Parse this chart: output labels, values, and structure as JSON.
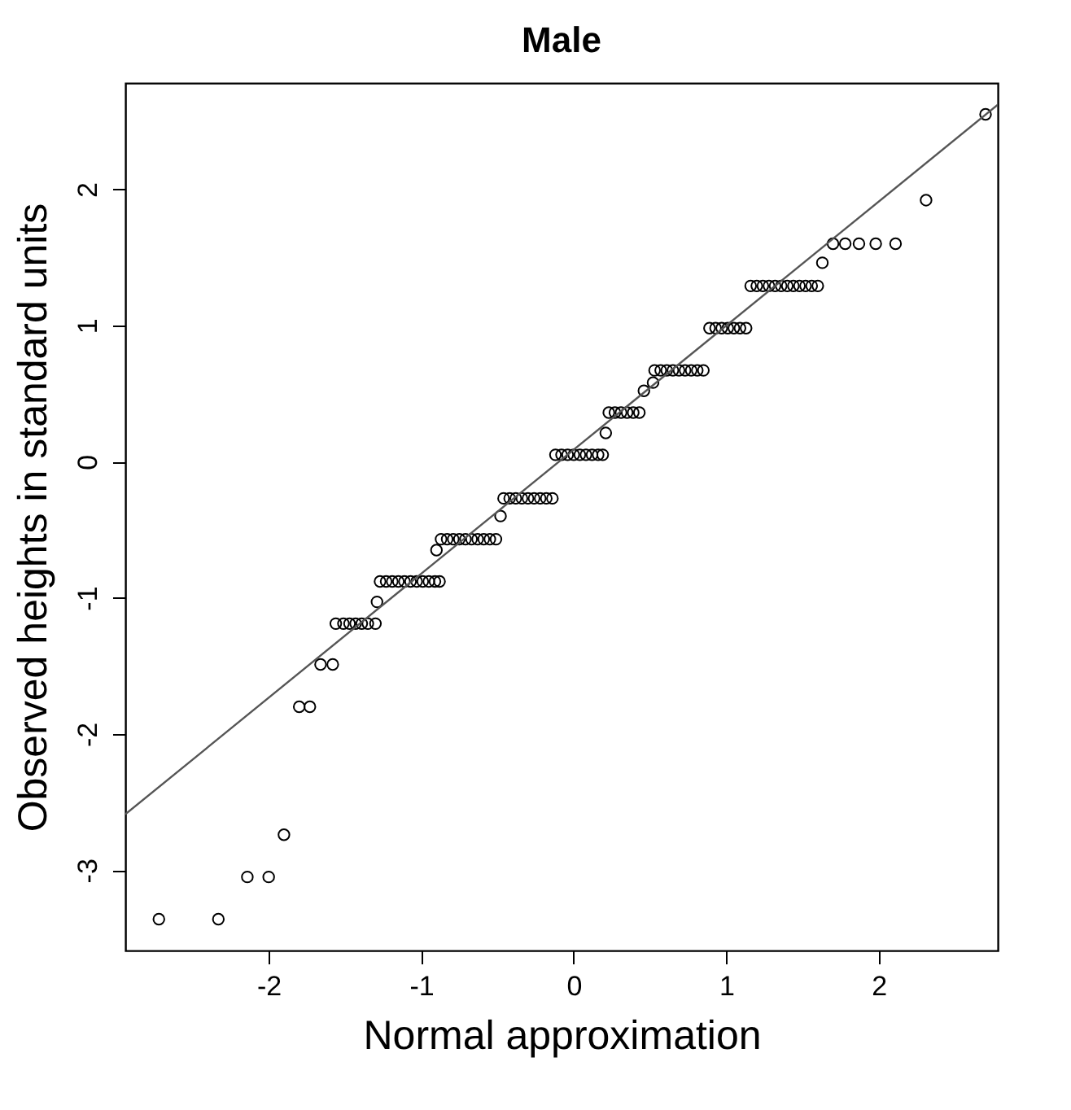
{
  "chart_data": {
    "type": "scatter",
    "title": "Male",
    "xlabel": "Normal approximation",
    "ylabel": "Observed heights in standard units",
    "xlim": [
      -2.94,
      2.78
    ],
    "ylim": [
      -3.59,
      2.78
    ],
    "xticks": [
      -2,
      -1,
      0,
      1,
      2
    ],
    "yticks": [
      -3,
      -2,
      -1,
      0,
      1,
      2
    ],
    "grid": false,
    "series": [
      {
        "color": "#000000",
        "marker": "circle",
        "x": [
          -2.72,
          -2.33,
          -2.14,
          -2.0,
          -1.9,
          -1.8,
          -1.73,
          -1.66,
          -1.58,
          -1.56,
          -1.51,
          -1.47,
          -1.43,
          -1.39,
          -1.35,
          -1.3,
          -1.29,
          -1.27,
          -1.23,
          -1.19,
          -1.15,
          -1.11,
          -1.07,
          -1.03,
          -0.99,
          -0.95,
          -0.91,
          -0.88,
          -0.9,
          -0.87,
          -0.83,
          -0.79,
          -0.75,
          -0.71,
          -0.67,
          -0.63,
          -0.59,
          -0.55,
          -0.51,
          -0.48,
          -0.46,
          -0.42,
          -0.38,
          -0.34,
          -0.3,
          -0.26,
          -0.22,
          -0.18,
          -0.14,
          -0.12,
          -0.08,
          -0.04,
          0.0,
          0.04,
          0.08,
          0.12,
          0.16,
          0.19,
          0.21,
          0.23,
          0.27,
          0.31,
          0.35,
          0.39,
          0.43,
          0.46,
          0.52,
          0.53,
          0.57,
          0.61,
          0.65,
          0.69,
          0.73,
          0.77,
          0.81,
          0.85,
          0.89,
          0.93,
          0.97,
          1.01,
          1.05,
          1.09,
          1.13,
          1.16,
          1.2,
          1.24,
          1.28,
          1.32,
          1.36,
          1.4,
          1.44,
          1.48,
          1.52,
          1.56,
          1.6,
          1.63,
          1.7,
          1.78,
          1.87,
          1.98,
          2.11,
          2.31,
          2.7
        ],
        "values": [
          -3.36,
          -3.36,
          -3.05,
          -3.05,
          -2.74,
          -1.8,
          -1.8,
          -1.49,
          -1.49,
          -1.19,
          -1.19,
          -1.19,
          -1.19,
          -1.19,
          -1.19,
          -1.19,
          -1.03,
          -0.88,
          -0.88,
          -0.88,
          -0.88,
          -0.88,
          -0.88,
          -0.88,
          -0.88,
          -0.88,
          -0.88,
          -0.88,
          -0.65,
          -0.57,
          -0.57,
          -0.57,
          -0.57,
          -0.57,
          -0.57,
          -0.57,
          -0.57,
          -0.57,
          -0.57,
          -0.4,
          -0.27,
          -0.27,
          -0.27,
          -0.27,
          -0.27,
          -0.27,
          -0.27,
          -0.27,
          -0.27,
          0.05,
          0.05,
          0.05,
          0.05,
          0.05,
          0.05,
          0.05,
          0.05,
          0.05,
          0.21,
          0.36,
          0.36,
          0.36,
          0.36,
          0.36,
          0.36,
          0.52,
          0.58,
          0.67,
          0.67,
          0.67,
          0.67,
          0.67,
          0.67,
          0.67,
          0.67,
          0.67,
          0.98,
          0.98,
          0.98,
          0.98,
          0.98,
          0.98,
          0.98,
          1.29,
          1.29,
          1.29,
          1.29,
          1.29,
          1.29,
          1.29,
          1.29,
          1.29,
          1.29,
          1.29,
          1.29,
          1.46,
          1.6,
          1.6,
          1.6,
          1.6,
          1.6,
          1.92,
          2.55
        ]
      },
      {
        "type": "line",
        "color": "#555555",
        "line_style": "solid",
        "x": [
          -2.94,
          2.78
        ],
        "values": [
          -2.59,
          2.62
        ]
      }
    ]
  }
}
